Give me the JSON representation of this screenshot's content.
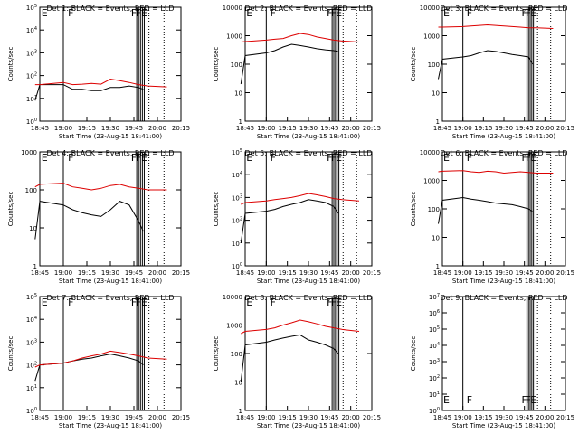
{
  "figure": {
    "background": "#ffffff",
    "events_color": "#000000",
    "lld_color": "#dd0000",
    "xlabel": "Start Time (23-Aug-15 18:41:00)",
    "ylabel": "Counts/sec",
    "xticks": [
      "18:45",
      "19:00",
      "19:15",
      "19:30",
      "19:45",
      "20:00",
      "20:15"
    ]
  },
  "chart_data": [
    {
      "type": "line",
      "title": "Det 1: BLACK = Events, RED = LLD",
      "yscale": "log",
      "ylim": [
        1,
        100000
      ],
      "yticks": [
        "10^0",
        "10^1",
        "10^2",
        "10^3",
        "10^4",
        "10^5"
      ],
      "xlabel": "Start Time (23-Aug-15 18:41:00)",
      "ylabel": "Counts/sec",
      "markers": [
        "E",
        "F",
        "F",
        "F",
        "E"
      ],
      "series": [
        {
          "color": "#000000",
          "x": [
            18.7,
            18.75,
            19.0,
            19.1,
            19.2,
            19.3,
            19.4,
            19.5,
            19.6,
            19.7,
            19.8,
            19.85
          ],
          "values": [
            8,
            40,
            40,
            25,
            25,
            22,
            22,
            30,
            30,
            35,
            30,
            25
          ]
        },
        {
          "color": "#dd0000",
          "x": [
            18.7,
            18.75,
            19.0,
            19.1,
            19.2,
            19.3,
            19.4,
            19.5,
            19.6,
            19.7,
            19.8,
            19.9,
            20.1
          ],
          "values": [
            40,
            40,
            50,
            40,
            42,
            45,
            42,
            70,
            60,
            50,
            40,
            35,
            32
          ]
        }
      ]
    },
    {
      "type": "line",
      "title": "Det 2: BLACK = Events, RED = LLD",
      "yscale": "log",
      "ylim": [
        1,
        10000
      ],
      "yticks": [
        "1",
        "10",
        "100",
        "1000",
        "10000"
      ],
      "xlabel": "Start Time (23-Aug-15 18:41:00)",
      "ylabel": "Counts/sec",
      "markers": [
        "E",
        "F",
        "F",
        "F",
        "E"
      ],
      "series": [
        {
          "color": "#000000",
          "x": [
            18.7,
            18.75,
            19.0,
            19.1,
            19.2,
            19.3,
            19.4,
            19.5,
            19.6,
            19.7,
            19.8,
            19.85
          ],
          "values": [
            20,
            200,
            250,
            300,
            400,
            500,
            450,
            400,
            350,
            320,
            300,
            280
          ]
        },
        {
          "color": "#dd0000",
          "x": [
            18.7,
            18.75,
            19.0,
            19.1,
            19.2,
            19.3,
            19.4,
            19.5,
            19.6,
            19.7,
            19.8,
            19.9,
            20.1
          ],
          "values": [
            600,
            620,
            700,
            750,
            800,
            1000,
            1200,
            1100,
            900,
            800,
            700,
            650,
            600
          ]
        }
      ]
    },
    {
      "type": "line",
      "title": "Det 3: BLACK = Events, RED = LLD",
      "yscale": "log",
      "ylim": [
        1,
        10000
      ],
      "yticks": [
        "1",
        "10",
        "100",
        "1000",
        "10000"
      ],
      "xlabel": "Start Time (23-Aug-15 18:41:00)",
      "ylabel": "Counts/sec",
      "markers": [
        "E",
        "F",
        "F",
        "F",
        "E"
      ],
      "series": [
        {
          "color": "#000000",
          "x": [
            18.7,
            18.75,
            19.0,
            19.1,
            19.2,
            19.3,
            19.4,
            19.5,
            19.6,
            19.7,
            19.8,
            19.85
          ],
          "values": [
            30,
            150,
            180,
            200,
            250,
            300,
            280,
            250,
            220,
            200,
            180,
            100
          ]
        },
        {
          "color": "#dd0000",
          "x": [
            18.7,
            18.75,
            19.0,
            19.1,
            19.2,
            19.3,
            19.4,
            19.5,
            19.6,
            19.7,
            19.8,
            19.9,
            20.1
          ],
          "values": [
            2000,
            2000,
            2100,
            2200,
            2300,
            2400,
            2300,
            2200,
            2100,
            2000,
            1900,
            1900,
            1800
          ]
        }
      ]
    },
    {
      "type": "line",
      "title": "Det 4: BLACK = Events, RED = LLD",
      "yscale": "log",
      "ylim": [
        1,
        1000
      ],
      "yticks": [
        "1",
        "10",
        "100",
        "1000"
      ],
      "xlabel": "Start Time (23-Aug-15 18:41:00)",
      "ylabel": "Counts/sec",
      "markers": [
        "E",
        "F",
        "F",
        "F",
        "E"
      ],
      "series": [
        {
          "color": "#000000",
          "x": [
            18.7,
            18.75,
            19.0,
            19.1,
            19.2,
            19.3,
            19.4,
            19.5,
            19.6,
            19.7,
            19.8,
            19.85
          ],
          "values": [
            5,
            50,
            40,
            30,
            25,
            22,
            20,
            30,
            50,
            40,
            15,
            8
          ]
        },
        {
          "color": "#dd0000",
          "x": [
            18.7,
            18.75,
            19.0,
            19.1,
            19.2,
            19.3,
            19.4,
            19.5,
            19.6,
            19.7,
            19.8,
            19.9,
            20.1
          ],
          "values": [
            120,
            140,
            150,
            120,
            110,
            100,
            110,
            130,
            140,
            120,
            110,
            100,
            100
          ]
        }
      ]
    },
    {
      "type": "line",
      "title": "Det 5: BLACK = Events, RED = LLD",
      "yscale": "log",
      "ylim": [
        1,
        100000
      ],
      "yticks": [
        "10^0",
        "10^1",
        "10^2",
        "10^3",
        "10^4",
        "10^5"
      ],
      "xlabel": "Start Time (23-Aug-15 18:41:00)",
      "ylabel": "Counts/sec",
      "markers": [
        "E",
        "F",
        "F",
        "F",
        "E"
      ],
      "series": [
        {
          "color": "#000000",
          "x": [
            18.7,
            18.75,
            19.0,
            19.1,
            19.2,
            19.3,
            19.4,
            19.5,
            19.6,
            19.7,
            19.8,
            19.85
          ],
          "values": [
            10,
            200,
            250,
            300,
            400,
            500,
            600,
            800,
            700,
            600,
            400,
            200
          ]
        },
        {
          "color": "#dd0000",
          "x": [
            18.7,
            18.75,
            19.0,
            19.1,
            19.2,
            19.3,
            19.4,
            19.5,
            19.6,
            19.7,
            19.8,
            19.9,
            20.1
          ],
          "values": [
            500,
            600,
            700,
            800,
            900,
            1000,
            1200,
            1500,
            1300,
            1100,
            900,
            800,
            700
          ]
        }
      ]
    },
    {
      "type": "line",
      "title": "Det 6: BLACK = Events, RED = LLD",
      "yscale": "log",
      "ylim": [
        1,
        10000
      ],
      "yticks": [
        "1",
        "10",
        "100",
        "1000",
        "10000"
      ],
      "xlabel": "Start Time (23-Aug-15 18:41:00)",
      "ylabel": "Counts/sec",
      "markers": [
        "E",
        "F",
        "F",
        "F",
        "E"
      ],
      "series": [
        {
          "color": "#000000",
          "x": [
            18.7,
            18.75,
            19.0,
            19.1,
            19.2,
            19.3,
            19.4,
            19.5,
            19.6,
            19.7,
            19.8,
            19.85
          ],
          "values": [
            30,
            200,
            250,
            220,
            200,
            180,
            160,
            150,
            140,
            120,
            100,
            80
          ]
        },
        {
          "color": "#dd0000",
          "x": [
            18.7,
            18.75,
            19.0,
            19.1,
            19.2,
            19.3,
            19.4,
            19.5,
            19.6,
            19.7,
            19.8,
            19.9,
            20.1
          ],
          "values": [
            2000,
            2100,
            2200,
            2000,
            1900,
            2100,
            2000,
            1800,
            1900,
            2000,
            1900,
            1800,
            1800
          ]
        }
      ]
    },
    {
      "type": "line",
      "title": "Det 7: BLACK = Events, RED = LLD",
      "yscale": "log",
      "ylim": [
        1,
        100000
      ],
      "yticks": [
        "10^0",
        "10^1",
        "10^2",
        "10^3",
        "10^4",
        "10^5"
      ],
      "xlabel": "Start Time (23-Aug-15 18:41:00)",
      "ylabel": "Counts/sec",
      "markers": [
        "E",
        "F",
        "F",
        "F",
        "E"
      ],
      "series": [
        {
          "color": "#000000",
          "x": [
            18.7,
            18.75,
            19.0,
            19.1,
            19.2,
            19.3,
            19.4,
            19.5,
            19.6,
            19.7,
            19.8,
            19.85
          ],
          "values": [
            20,
            100,
            120,
            150,
            180,
            200,
            250,
            300,
            250,
            200,
            150,
            100
          ]
        },
        {
          "color": "#dd0000",
          "x": [
            18.7,
            18.75,
            19.0,
            19.1,
            19.2,
            19.3,
            19.4,
            19.5,
            19.6,
            19.7,
            19.8,
            19.9,
            20.1
          ],
          "values": [
            80,
            100,
            120,
            150,
            200,
            250,
            300,
            400,
            350,
            300,
            250,
            200,
            180
          ]
        }
      ]
    },
    {
      "type": "line",
      "title": "Det 8: BLACK = Events, RED = LLD",
      "yscale": "log",
      "ylim": [
        1,
        10000
      ],
      "yticks": [
        "1",
        "10",
        "100",
        "1000",
        "10000"
      ],
      "xlabel": "Start Time (23-Aug-15 18:41:00)",
      "ylabel": "Counts/sec",
      "markers": [
        "E",
        "F",
        "F",
        "F",
        "E"
      ],
      "series": [
        {
          "color": "#000000",
          "x": [
            18.7,
            18.75,
            19.0,
            19.1,
            19.2,
            19.3,
            19.4,
            19.5,
            19.6,
            19.7,
            19.8,
            19.85
          ],
          "values": [
            10,
            200,
            250,
            300,
            350,
            400,
            450,
            300,
            250,
            200,
            150,
            100
          ]
        },
        {
          "color": "#dd0000",
          "x": [
            18.7,
            18.75,
            19.0,
            19.1,
            19.2,
            19.3,
            19.4,
            19.5,
            19.6,
            19.7,
            19.8,
            19.9,
            20.1
          ],
          "values": [
            500,
            600,
            700,
            800,
            1000,
            1200,
            1500,
            1300,
            1100,
            900,
            800,
            700,
            600
          ]
        }
      ]
    },
    {
      "type": "line",
      "title": "Det 9: BLACK = Events, RED = LLD",
      "yscale": "log",
      "ylim": [
        1,
        10000000
      ],
      "yticks": [
        "10^0",
        "10^1",
        "10^2",
        "10^3",
        "10^4",
        "10^5",
        "10^6",
        "10^7"
      ],
      "xlabel": "Start Time (23-Aug-15 18:41:00)",
      "ylabel": "Counts/sec",
      "markers": [
        "E",
        "F",
        "F",
        "F",
        "E"
      ],
      "series": []
    }
  ]
}
